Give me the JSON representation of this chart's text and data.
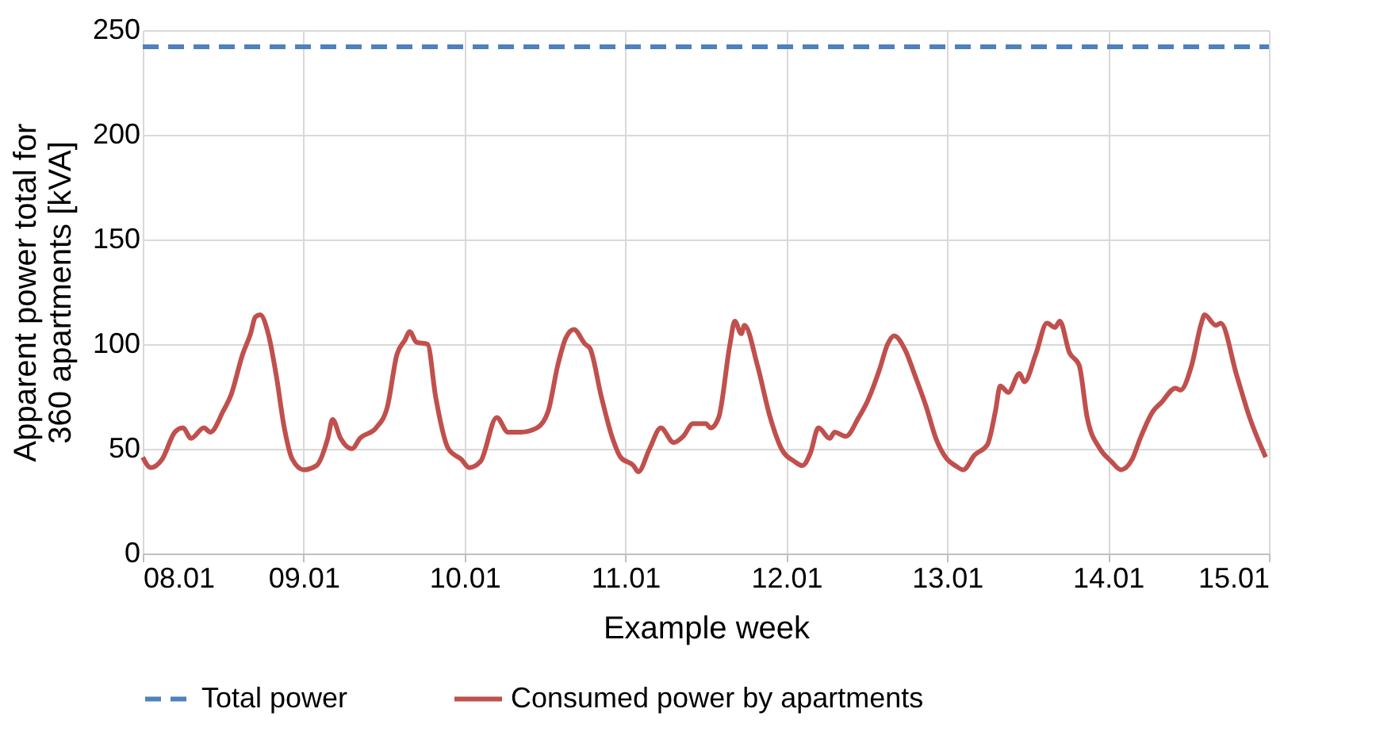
{
  "chart_data": {
    "type": "line",
    "xlabel": "Example week",
    "ylabel": "Apparent power total for 360 apartments [kVA]",
    "xlim": [
      "--01-08",
      "--01-15"
    ],
    "xticks": [
      {
        "value": "--01-08",
        "label": "08.01"
      },
      {
        "value": "--01-09",
        "label": "09.01"
      },
      {
        "value": "--01-10",
        "label": "10.01"
      },
      {
        "value": "--01-11",
        "label": "11.01"
      },
      {
        "value": "--01-12",
        "label": "12.01"
      },
      {
        "value": "--01-13",
        "label": "13.01"
      },
      {
        "value": "--01-14",
        "label": "14.01"
      },
      {
        "value": "--01-15",
        "label": "15.01"
      }
    ],
    "ylim": [
      0,
      250
    ],
    "yticks": [
      0,
      50,
      100,
      150,
      200,
      250
    ],
    "grid": true,
    "legend": "bottom",
    "marker": "none",
    "series": [
      {
        "name": "Total power",
        "color": "#4f81bd",
        "line_style": "dashed",
        "x": [
          "--01-08",
          "--01-15"
        ],
        "values": [
          242,
          242
        ]
      },
      {
        "name": "Consumed power by apartments",
        "color": "#c0504d",
        "line_style": "solid",
        "x": [
          "--01-08T00:00",
          "--01-08T01:12",
          "--01-08T02:53",
          "--01-08T04:48",
          "--01-08T06:00",
          "--01-08T07:12",
          "--01-08T09:07",
          "--01-08T10:05",
          "--01-08T12:00",
          "--01-08T13:12",
          "--01-08T14:53",
          "--01-08T16:05",
          "--01-08T16:48",
          "--01-08T17:31",
          "--01-08T18:43",
          "--01-08T19:55",
          "--01-08T21:07",
          "--01-08T22:19",
          "--01-09T00:00",
          "--01-09T01:55",
          "--01-09T03:36",
          "--01-09T04:19",
          "--01-09T05:31",
          "--01-09T07:12",
          "--01-09T08:24",
          "--01-09T10:48",
          "--01-09T12:29",
          "--01-09T13:55",
          "--01-09T15:07",
          "--01-09T15:50",
          "--01-09T16:48",
          "--01-09T18:29",
          "--01-09T19:41",
          "--01-09T21:36",
          "--01-09T23:31",
          "--01-10T00:43",
          "--01-10T02:24",
          "--01-10T04:48",
          "--01-10T06:29",
          "--01-10T08:24",
          "--01-10T10:48",
          "--01-10T12:29",
          "--01-10T13:55",
          "--01-10T15:07",
          "--01-10T16:19",
          "--01-10T18:00",
          "--01-10T18:43",
          "--01-10T20:24",
          "--01-10T22:05",
          "--01-10T23:17",
          "--01-11T01:12",
          "--01-11T01:55",
          "--01-11T03:36",
          "--01-11T05:17",
          "--01-11T07:12",
          "--01-11T08:38",
          "--01-11T10:05",
          "--01-11T12:00",
          "--01-11T12:43",
          "--01-11T13:55",
          "--01-11T15:36",
          "--01-11T16:19",
          "--01-11T17:17",
          "--01-11T17:46",
          "--01-11T19:41",
          "--01-11T21:36",
          "--01-11T23:17",
          "--01-12T01:12",
          "--01-12T02:24",
          "--01-12T03:36",
          "--01-12T04:48",
          "--01-12T06:29",
          "--01-12T07:12",
          "--01-12T08:53",
          "--01-12T10:48",
          "--01-12T12:00",
          "--01-12T13:55",
          "--01-12T15:07",
          "--01-12T16:05",
          "--01-12T17:46",
          "--01-12T19:12",
          "--01-12T20:53",
          "--01-12T22:19",
          "--01-13T00:00",
          "--01-13T01:12",
          "--01-13T02:24",
          "--01-13T04:05",
          "--01-13T06:00",
          "--01-13T07:12",
          "--01-13T07:55",
          "--01-13T09:07",
          "--01-13T10:48",
          "--01-13T11:31",
          "--01-13T13:12",
          "--01-13T14:53",
          "--01-13T16:05",
          "--01-13T16:48",
          "--01-13T18:14",
          "--01-13T19:41",
          "--01-13T20:53",
          "--01-13T22:48",
          "--01-14T00:29",
          "--01-14T01:55",
          "--01-14T03:36",
          "--01-14T04:48",
          "--01-14T06:43",
          "--01-14T07:55",
          "--01-14T10:05",
          "--01-14T10:48",
          "--01-14T12:29",
          "--01-14T13:55",
          "--01-14T14:24",
          "--01-14T16:05",
          "--01-14T16:48",
          "--01-14T19:12",
          "--01-14T21:07",
          "--01-14T23:31"
        ],
        "values": [
          46,
          41,
          45,
          58,
          60,
          55,
          60,
          58,
          68,
          76,
          95,
          105,
          113,
          114,
          105,
          85,
          60,
          45,
          40,
          42,
          55,
          64,
          55,
          50,
          55,
          60,
          70,
          95,
          102,
          106,
          101,
          100,
          75,
          50,
          45,
          41,
          44,
          65,
          58,
          58,
          60,
          68,
          90,
          103,
          107,
          100,
          98,
          75,
          55,
          46,
          42,
          39,
          50,
          60,
          53,
          56,
          62,
          62,
          60,
          65,
          100,
          111,
          105,
          109,
          90,
          65,
          50,
          44,
          42,
          48,
          60,
          55,
          58,
          56,
          65,
          72,
          88,
          100,
          104,
          97,
          85,
          70,
          55,
          45,
          42,
          40,
          47,
          52,
          68,
          80,
          77,
          86,
          82,
          95,
          110,
          108,
          111,
          96,
          90,
          65,
          50,
          44,
          40,
          45,
          55,
          68,
          72,
          79,
          78,
          90,
          110,
          114,
          109,
          110,
          85,
          65,
          46
        ]
      }
    ]
  }
}
